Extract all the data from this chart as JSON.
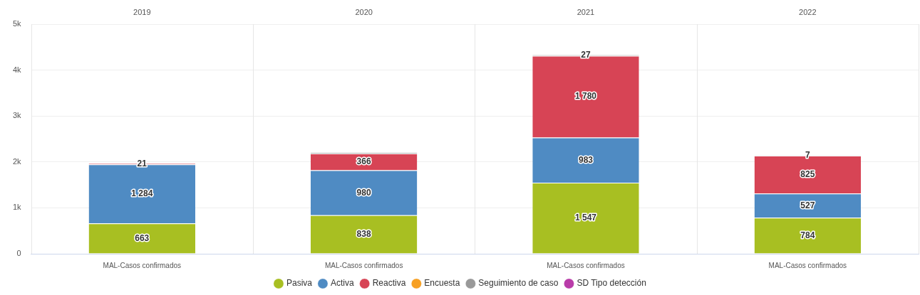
{
  "chart_data": {
    "type": "bar",
    "stacked": true,
    "categories": [
      "MAL-Casos confirmados",
      "MAL-Casos confirmados",
      "MAL-Casos confirmados",
      "MAL-Casos confirmados"
    ],
    "annotations": [
      "2019",
      "2020",
      "2021",
      "2022"
    ],
    "series": [
      {
        "name": "Pasiva",
        "color": "#a8bf22",
        "values": [
          663,
          838,
          1547,
          784
        ],
        "value_labels": [
          "663",
          "838",
          "1 547",
          "784"
        ]
      },
      {
        "name": "Activa",
        "color": "#4f8bc3",
        "values": [
          1284,
          980,
          983,
          527
        ],
        "value_labels": [
          "1 284",
          "980",
          "983",
          "527"
        ]
      },
      {
        "name": "Reactiva",
        "color": "#d74455",
        "values": [
          21,
          366,
          1780,
          825
        ],
        "value_labels": [
          "21",
          "366",
          "1 780",
          "825"
        ]
      },
      {
        "name": "Encuesta",
        "color": "#f7a023",
        "values": [
          null,
          null,
          null,
          null
        ]
      },
      {
        "name": "Seguimiento de caso",
        "color": "#999999",
        "values": [
          null,
          20,
          27,
          7
        ],
        "value_labels": [
          null,
          null,
          "27",
          "7"
        ]
      },
      {
        "name": "SD Tipo detección",
        "color": "#b93ca9",
        "values": [
          null,
          null,
          null,
          null
        ]
      }
    ],
    "ylim": [
      0,
      5000
    ],
    "yticks": [
      0,
      {
        "value": 1000,
        "label": "1k"
      },
      {
        "value": 2000,
        "label": "2k"
      },
      {
        "value": 3000,
        "label": "3k"
      },
      {
        "value": 4000,
        "label": "4k"
      },
      {
        "value": 5000,
        "label": "5k"
      }
    ],
    "grid": true,
    "legend": "bottom"
  }
}
